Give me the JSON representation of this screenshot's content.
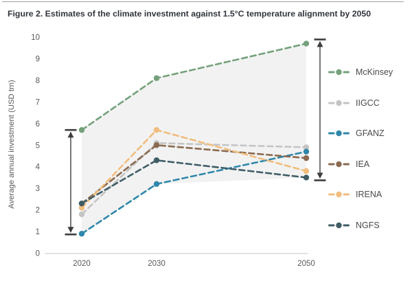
{
  "chart_data": {
    "type": "line",
    "title": "Figure 2. Estimates of the climate investment against 1.5°C temperature alignment by 2050",
    "xlabel": "",
    "ylabel": "Average annual investment (USD trn)",
    "x": [
      2020,
      2030,
      2050
    ],
    "x_tick_labels": [
      "2020",
      "2030",
      "2050"
    ],
    "ylim": [
      0,
      10
    ],
    "yticks": [
      0,
      1,
      2,
      3,
      4,
      5,
      6,
      7,
      8,
      9,
      10
    ],
    "grid": false,
    "line_style": "dashed",
    "marker": "circle",
    "legend_position": "right",
    "series": [
      {
        "name": "McKinsey",
        "color": "#74a17b",
        "values": [
          5.7,
          8.1,
          9.7
        ]
      },
      {
        "name": "IIGCC",
        "color": "#c4c4c4",
        "values": [
          1.8,
          5.1,
          4.9
        ]
      },
      {
        "name": "GFANZ",
        "color": "#2e87aa",
        "values": [
          0.9,
          3.2,
          4.7
        ]
      },
      {
        "name": "IEA",
        "color": "#8a6a50",
        "values": [
          2.3,
          5.0,
          4.4
        ]
      },
      {
        "name": "IRENA",
        "color": "#f1bd7d",
        "values": [
          2.1,
          5.7,
          3.8
        ]
      },
      {
        "name": "NGFS",
        "color": "#3f5d66",
        "values": [
          2.3,
          4.3,
          3.5
        ]
      }
    ],
    "range_band": {
      "fill": "#f2f2f2",
      "description": "shaded envelope between highest and lowest estimates"
    },
    "range_arrows": [
      {
        "year": 2020,
        "side": "left",
        "low": 0.9,
        "high": 5.7
      },
      {
        "year": 2050,
        "side": "right",
        "low": 3.5,
        "high": 9.7
      }
    ],
    "colors": {
      "axis_line": "#d8d8d8",
      "tick_text": "#595959",
      "arrow": "#3d3d3d",
      "title_text": "#31353c",
      "legend_text": "#4a4a4a"
    }
  }
}
